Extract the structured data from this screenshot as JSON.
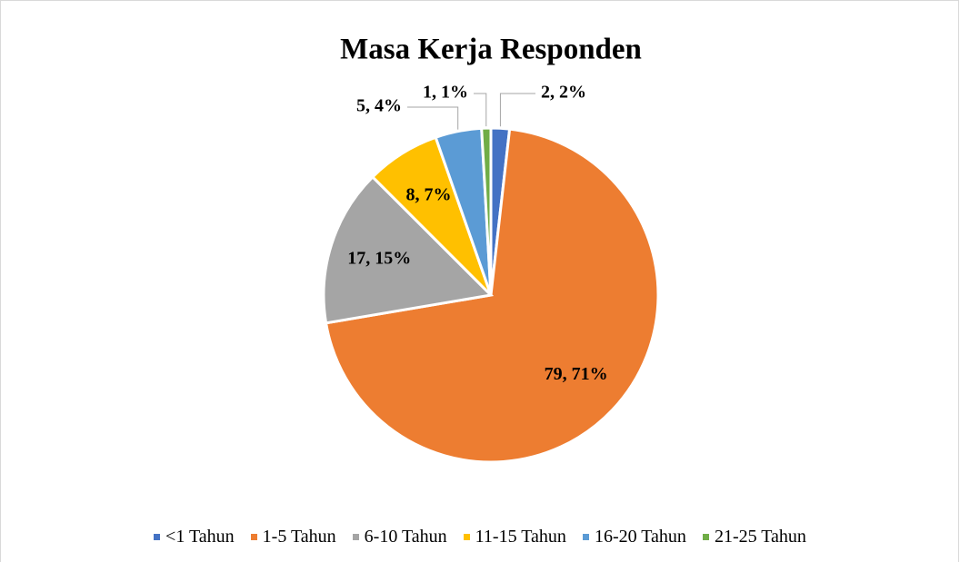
{
  "chart_data": {
    "type": "pie",
    "title": "Masa Kerja Responden",
    "categories": [
      "<1 Tahun",
      "1-5 Tahun",
      "6-10 Tahun",
      "11-15 Tahun",
      "16-20 Tahun",
      "21-25 Tahun"
    ],
    "values": [
      2,
      79,
      17,
      8,
      5,
      1
    ],
    "value_labels": [
      "2, 2%",
      "79, 71%",
      "17, 15%",
      "8, 7%",
      "5, 4%",
      "1, 1%"
    ],
    "colors": [
      "#4472c4",
      "#ed7d31",
      "#a5a5a5",
      "#ffc000",
      "#5b9bd5",
      "#70ad47"
    ],
    "legend": "bottom"
  }
}
